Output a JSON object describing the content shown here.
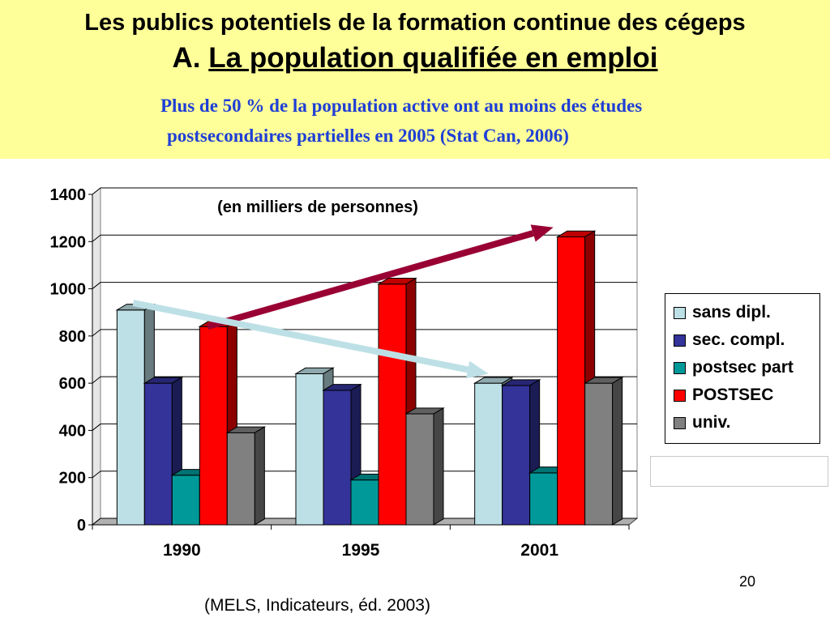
{
  "header": {
    "title_line1": "Les publics potentiels de la formation continue des cégeps",
    "title_prefix": "A. ",
    "title_main": "La population qualifiée en emploi",
    "subtitle_line1": "Plus de 50 % de la population active ont au moins des études",
    "subtitle_line2": "postsecondaires partielles en 2005 (Stat Can, 2006)"
  },
  "chart_data": {
    "type": "bar",
    "title": "",
    "annotation": "(en milliers de personnes)",
    "categories": [
      "1990",
      "1995",
      "2001"
    ],
    "ylim": [
      0,
      1400
    ],
    "yticks": [
      "0",
      "200",
      "400",
      "600",
      "800",
      "1000",
      "1200",
      "1400"
    ],
    "grid": true,
    "legend_position": "right",
    "series": [
      {
        "name": "sans dipl.",
        "values": [
          910,
          640,
          600
        ],
        "color": "#bde0e6"
      },
      {
        "name": "sec. compl.",
        "values": [
          600,
          570,
          590
        ],
        "color": "#333399"
      },
      {
        "name": "postsec part",
        "values": [
          210,
          190,
          220
        ],
        "color": "#009999"
      },
      {
        "name": "POSTSEC",
        "values": [
          840,
          1020,
          1220
        ],
        "color": "#ff0000"
      },
      {
        "name": "univ.",
        "values": [
          390,
          470,
          600
        ],
        "color": "#808080"
      }
    ],
    "arrows": [
      {
        "from_category": "1990",
        "from_value": 840,
        "to_category": "2001",
        "to_value": 1260,
        "color": "#990033"
      },
      {
        "from_category": "1990",
        "from_value": 940,
        "to_category": "2001",
        "to_value": 640,
        "color": "#bde0e6"
      }
    ]
  },
  "page_number": "20",
  "source_note": "(MELS, Indicateurs, éd. 2003)"
}
